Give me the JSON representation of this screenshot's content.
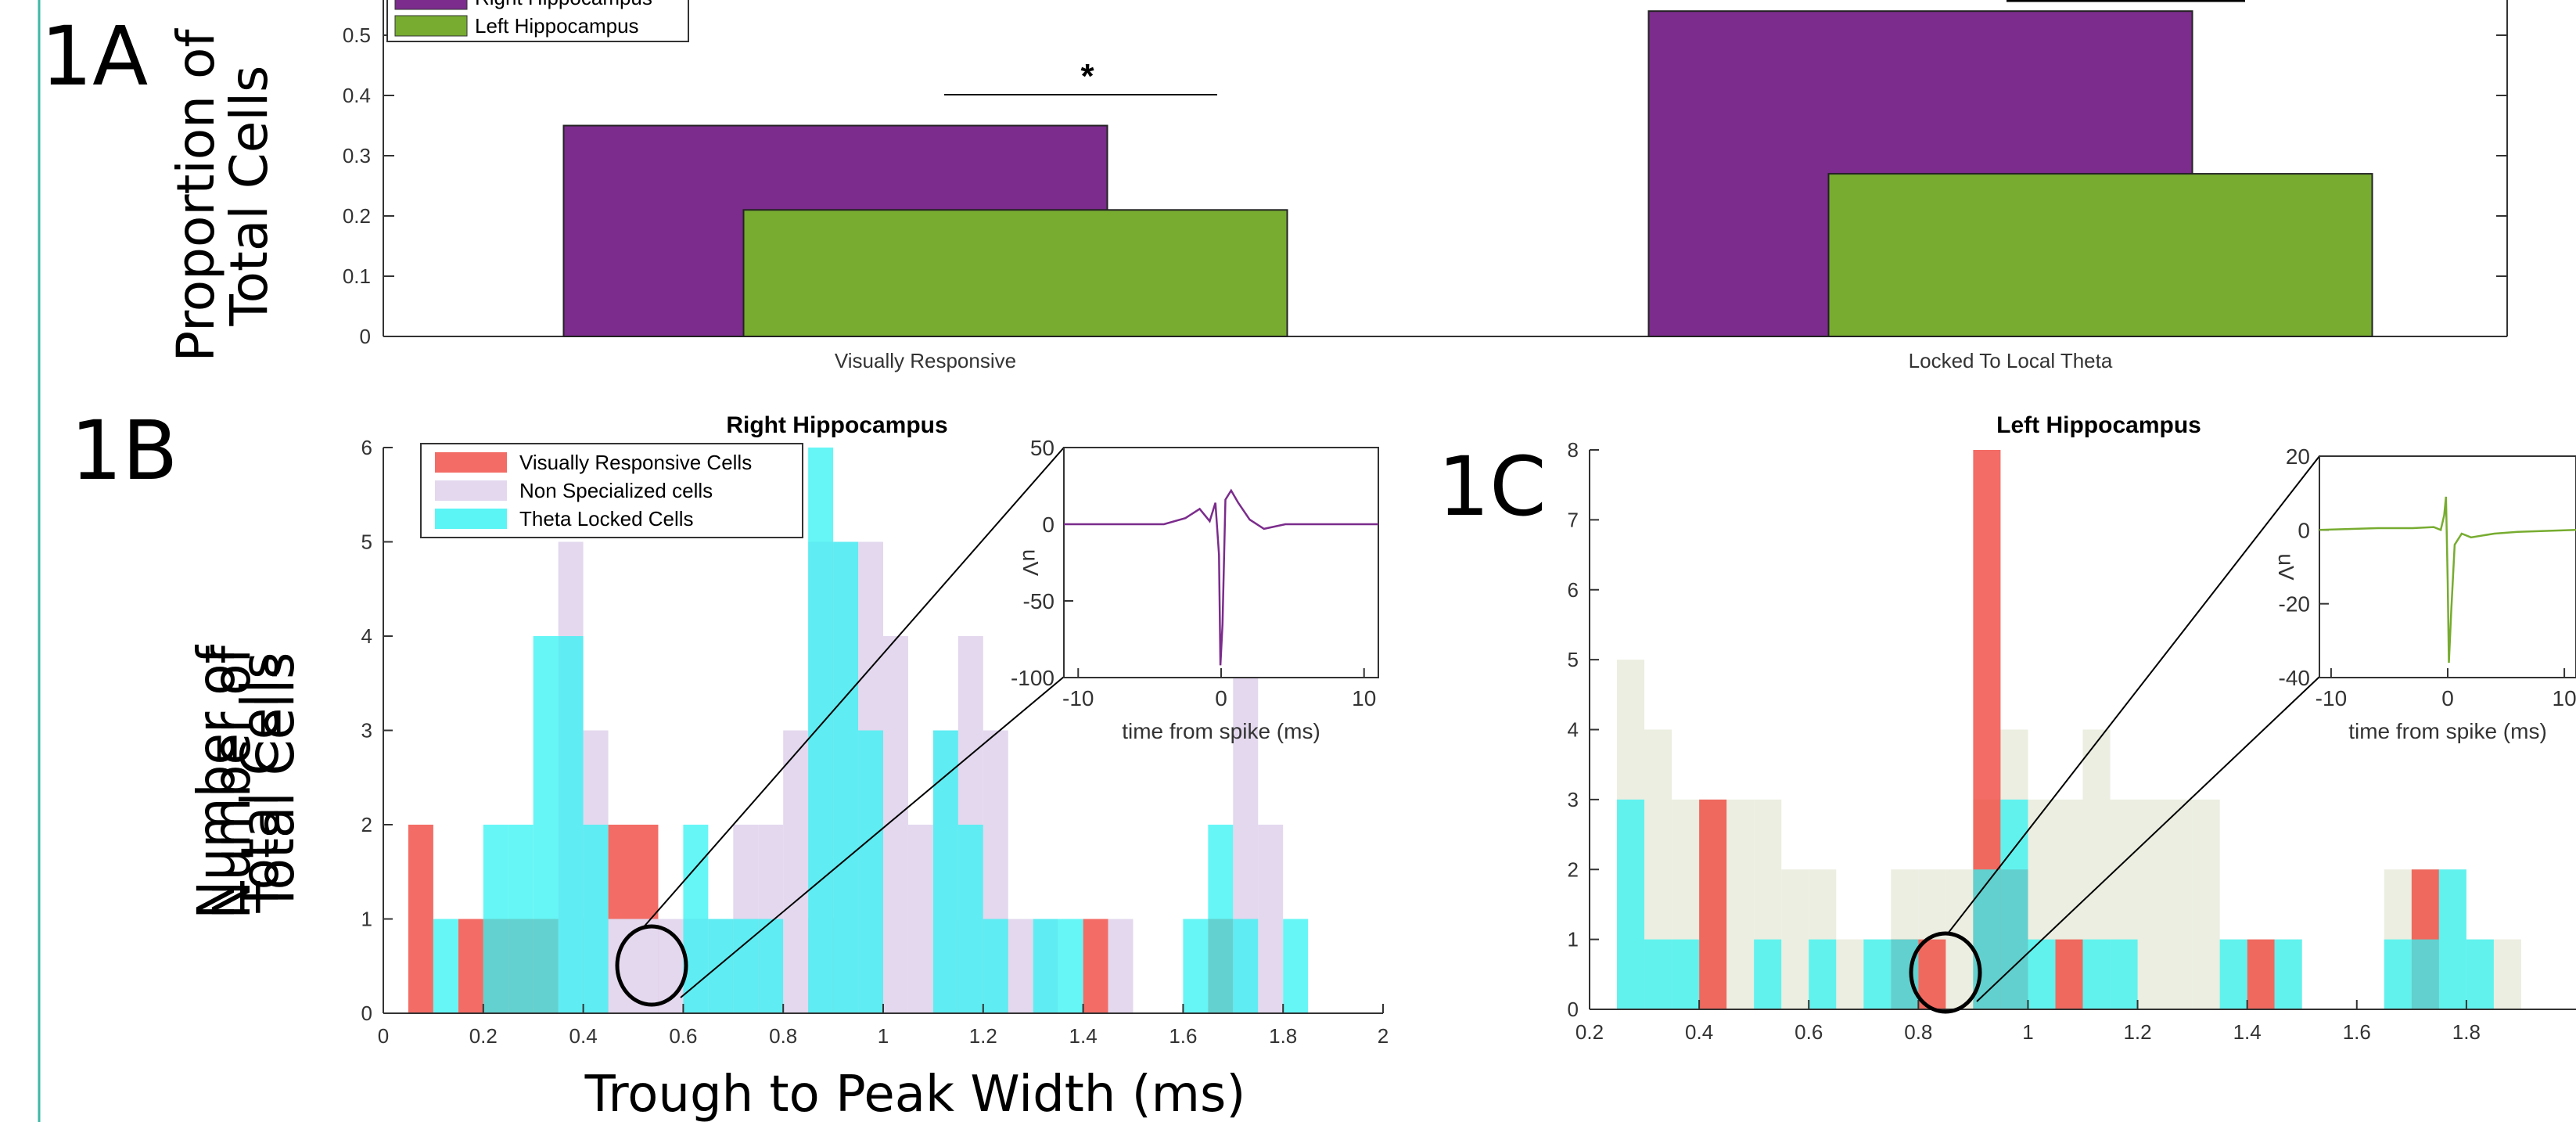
{
  "figure": {
    "label_1a": "1A",
    "label_1b": "1B",
    "label_1c": "1C",
    "ylabel_1a_line1": "Proportion of",
    "ylabel_1a_line2": "Total Cells",
    "ylabel_1b_line1": "Number of",
    "ylabel_1b_line2": "Total Cells",
    "xlabel_1b": "Trough to Peak Width (ms)"
  },
  "chart_data": [
    {
      "id": "1A",
      "type": "bar",
      "categories": [
        "Visually Responsive",
        "Locked To Local Theta"
      ],
      "series": [
        {
          "name": "Right Hippocampus",
          "values": [
            0.35,
            0.54
          ],
          "color": "#7B2C8C"
        },
        {
          "name": "Left Hippocampus",
          "values": [
            0.21,
            0.27
          ],
          "color": "#77AC30"
        }
      ],
      "ylim": [
        0,
        0.55
      ],
      "yticks": [
        "0",
        "0.1",
        "0.2",
        "0.3",
        "0.4",
        "0.5"
      ],
      "significance": "*",
      "legend": "top-left"
    },
    {
      "id": "1B",
      "type": "bar",
      "title": "Right Hippocampus",
      "xlim": [
        0,
        2
      ],
      "ylim": [
        0,
        6
      ],
      "xticks": [
        "0",
        "0.2",
        "0.4",
        "0.6",
        "0.8",
        "1",
        "1.2",
        "1.4",
        "1.6",
        "1.8",
        "2"
      ],
      "yticks": [
        "0",
        "1",
        "2",
        "3",
        "4",
        "5",
        "6"
      ],
      "bin_width": 0.05,
      "series": [
        {
          "name": "Visually Responsive Cells",
          "color": "#F0473F",
          "bins": [
            [
              0.05,
              2
            ],
            [
              0.15,
              1
            ],
            [
              0.2,
              1
            ],
            [
              0.25,
              1
            ],
            [
              0.3,
              1
            ],
            [
              0.35,
              1
            ],
            [
              0.4,
              1
            ],
            [
              0.45,
              2
            ],
            [
              0.5,
              2
            ],
            [
              0.7,
              1
            ],
            [
              0.85,
              1
            ],
            [
              0.9,
              1
            ],
            [
              1.1,
              1
            ],
            [
              1.2,
              1
            ],
            [
              1.4,
              1
            ],
            [
              1.65,
              1
            ]
          ]
        },
        {
          "name": "Non Specialized cells",
          "color": "#E3D8EE",
          "bins": [
            [
              0.35,
              5
            ],
            [
              0.4,
              3
            ],
            [
              0.45,
              1
            ],
            [
              0.5,
              1
            ],
            [
              0.55,
              1
            ],
            [
              0.6,
              1
            ],
            [
              0.65,
              1
            ],
            [
              0.7,
              2
            ],
            [
              0.75,
              2
            ],
            [
              0.8,
              3
            ],
            [
              0.85,
              5
            ],
            [
              0.9,
              5
            ],
            [
              0.95,
              5
            ],
            [
              1.0,
              4
            ],
            [
              1.05,
              2
            ],
            [
              1.1,
              3
            ],
            [
              1.15,
              4
            ],
            [
              1.2,
              3
            ],
            [
              1.25,
              1
            ],
            [
              1.3,
              1
            ],
            [
              1.45,
              1
            ],
            [
              1.7,
              4
            ],
            [
              1.75,
              2
            ]
          ]
        },
        {
          "name": "Theta Locked Cells",
          "color": "#33F3F3",
          "bins": [
            [
              0.1,
              1
            ],
            [
              0.2,
              2
            ],
            [
              0.25,
              2
            ],
            [
              0.3,
              4
            ],
            [
              0.35,
              4
            ],
            [
              0.4,
              2
            ],
            [
              0.6,
              2
            ],
            [
              0.65,
              1
            ],
            [
              0.7,
              1
            ],
            [
              0.75,
              1
            ],
            [
              0.85,
              6
            ],
            [
              0.9,
              5
            ],
            [
              0.95,
              3
            ],
            [
              1.1,
              3
            ],
            [
              1.15,
              2
            ],
            [
              1.2,
              1
            ],
            [
              1.3,
              1
            ],
            [
              1.35,
              1
            ],
            [
              1.6,
              1
            ],
            [
              1.65,
              2
            ],
            [
              1.7,
              1
            ],
            [
              1.8,
              1
            ]
          ]
        }
      ],
      "legend": "top-left",
      "inset": {
        "xlabel": "time from spike (ms)",
        "ylabel": "uV",
        "xlim": [
          -11,
          11
        ],
        "ylim": [
          -100,
          50
        ],
        "xticks": [
          "-10",
          "0",
          "10"
        ],
        "yticks": [
          "-100",
          "-50",
          "0",
          "50"
        ],
        "color": "#7B2C8C"
      }
    },
    {
      "id": "1C",
      "type": "bar",
      "title": "Left Hippocampus",
      "xlim": [
        0.2,
        2
      ],
      "ylim": [
        0,
        8
      ],
      "xticks": [
        "0.2",
        "0.4",
        "0.6",
        "0.8",
        "1",
        "1.2",
        "1.4",
        "1.6",
        "1.8"
      ],
      "yticks": [
        "0",
        "1",
        "2",
        "3",
        "4",
        "5",
        "6",
        "7",
        "8"
      ],
      "bin_width": 0.05,
      "series": [
        {
          "name": "Non Specialized cells",
          "color": "#EBEEE0",
          "bins": [
            [
              0.25,
              5
            ],
            [
              0.3,
              4
            ],
            [
              0.35,
              3
            ],
            [
              0.4,
              3
            ],
            [
              0.45,
              3
            ],
            [
              0.5,
              3
            ],
            [
              0.55,
              2
            ],
            [
              0.6,
              2
            ],
            [
              0.65,
              1
            ],
            [
              0.7,
              1
            ],
            [
              0.75,
              2
            ],
            [
              0.8,
              2
            ],
            [
              0.85,
              2
            ],
            [
              0.9,
              3
            ],
            [
              0.95,
              4
            ],
            [
              1.0,
              3
            ],
            [
              1.05,
              3
            ],
            [
              1.1,
              4
            ],
            [
              1.15,
              3
            ],
            [
              1.2,
              3
            ],
            [
              1.25,
              3
            ],
            [
              1.3,
              3
            ],
            [
              1.35,
              1
            ],
            [
              1.4,
              1
            ],
            [
              1.45,
              1
            ],
            [
              1.65,
              2
            ],
            [
              1.7,
              2
            ],
            [
              1.75,
              2
            ],
            [
              1.8,
              1
            ],
            [
              1.85,
              1
            ]
          ]
        },
        {
          "name": "Visually Responsive Cells",
          "color": "#F0473F",
          "bins": [
            [
              0.4,
              3
            ],
            [
              0.75,
              1
            ],
            [
              0.8,
              1
            ],
            [
              0.9,
              8
            ],
            [
              0.95,
              2
            ],
            [
              1.05,
              1
            ],
            [
              1.4,
              1
            ],
            [
              1.7,
              2
            ]
          ]
        },
        {
          "name": "Theta Locked Cells",
          "color": "#33F3F3",
          "bins": [
            [
              0.25,
              3
            ],
            [
              0.3,
              1
            ],
            [
              0.35,
              1
            ],
            [
              0.5,
              1
            ],
            [
              0.6,
              1
            ],
            [
              0.7,
              1
            ],
            [
              0.75,
              1
            ],
            [
              0.9,
              2
            ],
            [
              0.95,
              3
            ],
            [
              1.0,
              1
            ],
            [
              1.1,
              1
            ],
            [
              1.15,
              1
            ],
            [
              1.35,
              1
            ],
            [
              1.45,
              1
            ],
            [
              1.65,
              1
            ],
            [
              1.7,
              1
            ],
            [
              1.75,
              2
            ],
            [
              1.8,
              1
            ]
          ]
        }
      ],
      "inset": {
        "xlabel": "time from spike (ms)",
        "ylabel": "uV",
        "xlim": [
          -11,
          11
        ],
        "ylim": [
          -40,
          20
        ],
        "xticks": [
          "-10",
          "0",
          "10"
        ],
        "yticks": [
          "-40",
          "-20",
          "0",
          "20"
        ],
        "color": "#77AC30"
      }
    }
  ]
}
